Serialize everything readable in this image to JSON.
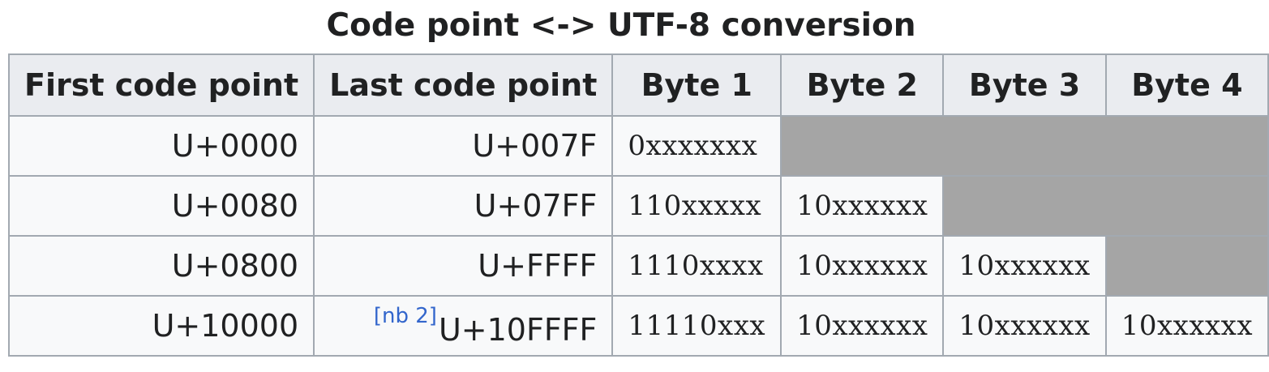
{
  "caption": "Code point <-> UTF-8 conversion",
  "headers": [
    "First code point",
    "Last code point",
    "Byte 1",
    "Byte 2",
    "Byte 3",
    "Byte 4"
  ],
  "rows": [
    {
      "first": "U+0000",
      "last": "U+007F",
      "note": "",
      "bytes": [
        "0xxxxxxx",
        "",
        "",
        ""
      ]
    },
    {
      "first": "U+0080",
      "last": "U+07FF",
      "note": "",
      "bytes": [
        "110xxxxx",
        "10xxxxxx",
        "",
        ""
      ]
    },
    {
      "first": "U+0800",
      "last": "U+FFFF",
      "note": "",
      "bytes": [
        "1110xxxx",
        "10xxxxxx",
        "10xxxxxx",
        ""
      ]
    },
    {
      "first": "U+10000",
      "last": "U+10FFFF",
      "note": "[nb 2]",
      "bytes": [
        "11110xxx",
        "10xxxxxx",
        "10xxxxxx",
        "10xxxxxx"
      ]
    }
  ],
  "colors": {
    "header_bg": "#eaecf0",
    "cell_bg": "#f8f9fa",
    "empty_cell_bg": "#a5a5a5",
    "border": "#a2a9b1",
    "link": "#3366cc"
  }
}
